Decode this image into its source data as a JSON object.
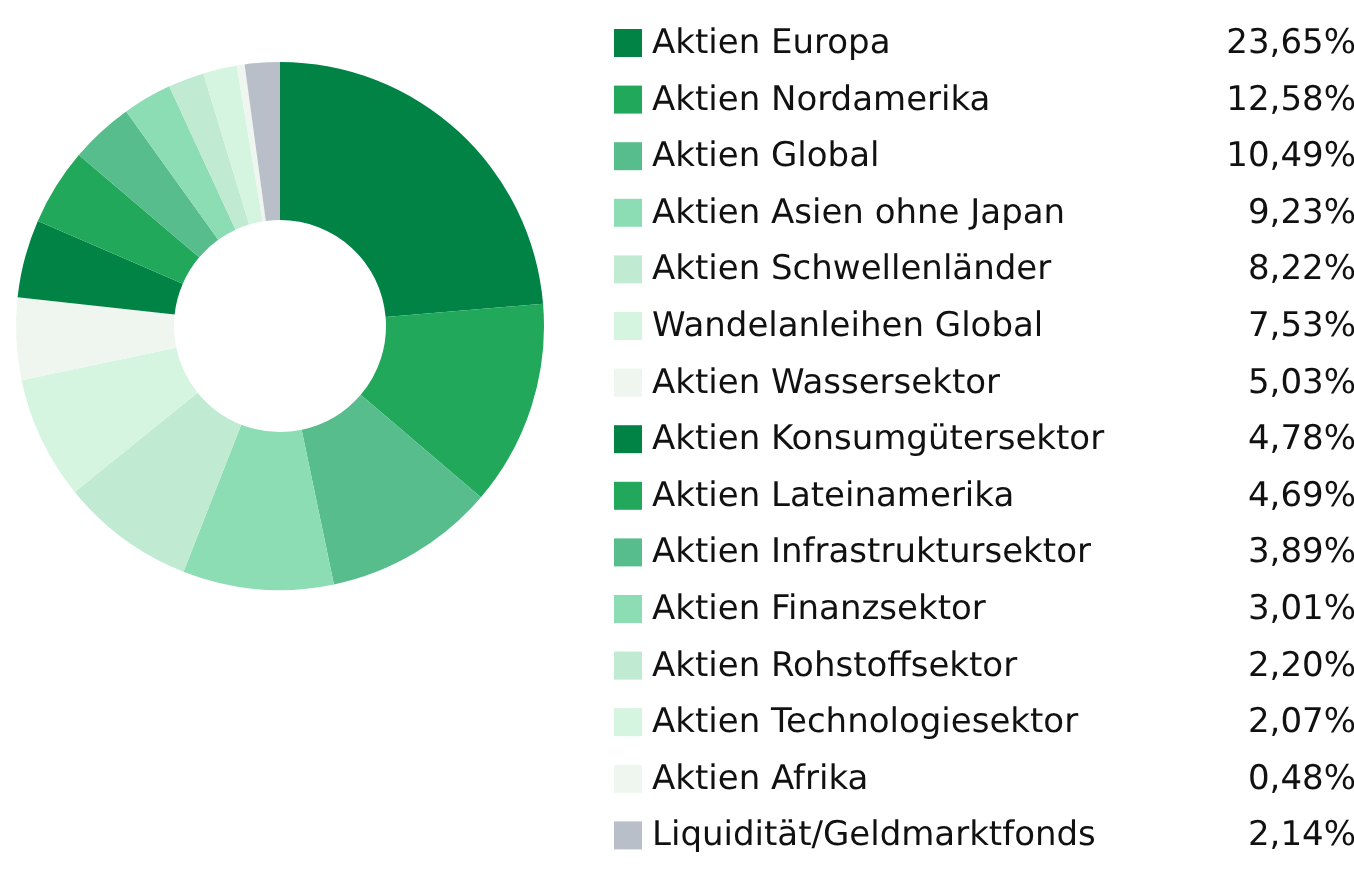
{
  "chart_data": {
    "type": "donut",
    "categories": [
      "Aktien Europa",
      "Aktien Nordamerika",
      "Aktien Global",
      "Aktien Asien ohne Japan",
      "Aktien Schwellenländer",
      "Wandelanleihen Global",
      "Aktien Wassersektor",
      "Aktien Konsumgütersektor",
      "Aktien Lateinamerika",
      "Aktien Infrastruktursektor",
      "Aktien Finanzsektor",
      "Aktien Rohstoffsektor",
      "Aktien Technologiesektor",
      "Aktien Afrika",
      "Liquidität/Geldmarktfonds"
    ],
    "values": [
      23.65,
      12.58,
      10.49,
      9.23,
      8.22,
      7.53,
      5.03,
      4.78,
      4.69,
      3.89,
      3.01,
      2.2,
      2.07,
      0.48,
      2.14
    ],
    "value_labels": [
      "23,65%",
      "12,58%",
      "10,49%",
      "9,23%",
      "8,22%",
      "7,53%",
      "5,03%",
      "4,78%",
      "4,69%",
      "3,89%",
      "3,01%",
      "2,20%",
      "2,07%",
      "0,48%",
      "2,14%"
    ],
    "colors": [
      "#008345",
      "#22a85a",
      "#57bd8c",
      "#8cdcb4",
      "#c0ebd2",
      "#d5f5e0",
      "#eef6ef",
      "#008345",
      "#22a85a",
      "#57bd8c",
      "#8cdcb4",
      "#c0ebd2",
      "#d5f5e0",
      "#eef6ef",
      "#b9bfc8"
    ],
    "legend": "right"
  }
}
